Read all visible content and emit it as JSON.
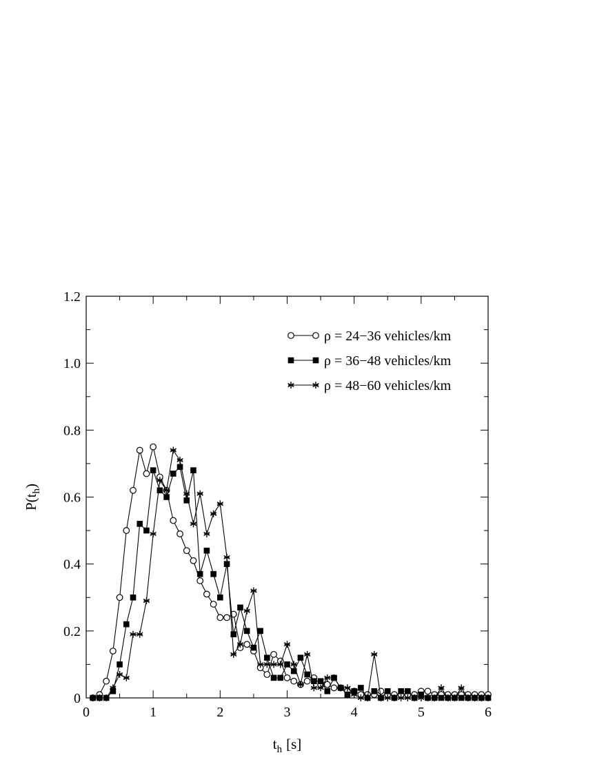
{
  "chart_data": {
    "type": "line",
    "xlabel_main": "t",
    "xlabel_sub": "h",
    "xlabel_unit": "[s]",
    "ylabel_main": "P(t",
    "ylabel_sub": "h",
    "ylabel_close": ")",
    "xlim": [
      0,
      6
    ],
    "ylim": [
      0,
      1.2
    ],
    "xticks": [
      0,
      1,
      2,
      3,
      4,
      5,
      6
    ],
    "xtick_labels": [
      "0",
      "1",
      "2",
      "3",
      "4",
      "5",
      "6"
    ],
    "yticks": [
      0,
      0.2,
      0.4,
      0.6,
      0.8,
      1.0,
      1.2
    ],
    "ytick_labels": [
      "0",
      "0.2",
      "0.4",
      "0.6",
      "0.8",
      "1.0",
      "1.2"
    ],
    "grid": false,
    "legend_position": "top-right",
    "series": [
      {
        "name": "ρ = 24−36 vehicles/km",
        "marker": "open-circle",
        "x": [
          0.1,
          0.2,
          0.3,
          0.4,
          0.5,
          0.6,
          0.7,
          0.8,
          0.9,
          1.0,
          1.1,
          1.2,
          1.3,
          1.4,
          1.5,
          1.6,
          1.7,
          1.8,
          1.9,
          2.0,
          2.1,
          2.2,
          2.3,
          2.4,
          2.5,
          2.6,
          2.7,
          2.8,
          2.9,
          3.0,
          3.1,
          3.2,
          3.3,
          3.4,
          3.5,
          3.6,
          3.7,
          3.8,
          3.9,
          4.0,
          4.1,
          4.2,
          4.3,
          4.4,
          4.5,
          4.6,
          4.7,
          4.8,
          4.9,
          5.0,
          5.1,
          5.2,
          5.3,
          5.4,
          5.5,
          5.6,
          5.7,
          5.8,
          5.9,
          6.0
        ],
        "y": [
          0,
          0.01,
          0.05,
          0.14,
          0.3,
          0.5,
          0.62,
          0.74,
          0.67,
          0.75,
          0.66,
          0.62,
          0.53,
          0.49,
          0.44,
          0.41,
          0.35,
          0.31,
          0.28,
          0.24,
          0.24,
          0.25,
          0.15,
          0.16,
          0.14,
          0.09,
          0.07,
          0.13,
          0.11,
          0.06,
          0.05,
          0.04,
          0.05,
          0.06,
          0.04,
          0.04,
          0.03,
          0.03,
          0.02,
          0.02,
          0.01,
          0.01,
          0.01,
          0.02,
          0.01,
          0.01,
          0.01,
          0.01,
          0.01,
          0.02,
          0.02,
          0.01,
          0.01,
          0.01,
          0.01,
          0.01,
          0.01,
          0.01,
          0.01,
          0.01
        ]
      },
      {
        "name": "ρ = 36−48 vehicles/km",
        "marker": "filled-square",
        "x": [
          0.1,
          0.2,
          0.3,
          0.4,
          0.5,
          0.6,
          0.7,
          0.8,
          0.9,
          1.0,
          1.1,
          1.2,
          1.3,
          1.4,
          1.5,
          1.6,
          1.7,
          1.8,
          1.9,
          2.0,
          2.1,
          2.2,
          2.3,
          2.4,
          2.5,
          2.6,
          2.7,
          2.8,
          2.9,
          3.0,
          3.1,
          3.2,
          3.3,
          3.4,
          3.5,
          3.6,
          3.7,
          3.8,
          3.9,
          4.0,
          4.1,
          4.2,
          4.3,
          4.4,
          4.5,
          4.6,
          4.7,
          4.8,
          4.9,
          5.0,
          5.1,
          5.2,
          5.3,
          5.4,
          5.5,
          5.6,
          5.7,
          5.8,
          5.9,
          6.0
        ],
        "y": [
          0,
          0,
          0,
          0.02,
          0.1,
          0.22,
          0.3,
          0.52,
          0.5,
          0.68,
          0.62,
          0.6,
          0.67,
          0.69,
          0.59,
          0.68,
          0.37,
          0.44,
          0.37,
          0.3,
          0.4,
          0.19,
          0.27,
          0.2,
          0.15,
          0.2,
          0.12,
          0.06,
          0.06,
          0.1,
          0.08,
          0.12,
          0.07,
          0.05,
          0.05,
          0.02,
          0.06,
          0.03,
          0.01,
          0.02,
          0.03,
          0,
          0.02,
          0,
          0.02,
          0,
          0.02,
          0.02,
          0,
          0.01,
          0,
          0,
          0,
          0,
          0,
          0,
          0,
          0,
          0,
          0
        ]
      },
      {
        "name": "ρ = 48−60 vehicles/km",
        "marker": "star",
        "x": [
          0.1,
          0.2,
          0.3,
          0.4,
          0.5,
          0.6,
          0.7,
          0.8,
          0.9,
          1.0,
          1.1,
          1.2,
          1.3,
          1.4,
          1.5,
          1.6,
          1.7,
          1.8,
          1.9,
          2.0,
          2.1,
          2.2,
          2.3,
          2.4,
          2.5,
          2.6,
          2.7,
          2.8,
          2.9,
          3.0,
          3.1,
          3.2,
          3.3,
          3.4,
          3.5,
          3.6,
          3.7,
          3.8,
          3.9,
          4.0,
          4.1,
          4.2,
          4.3,
          4.4,
          4.5,
          4.6,
          4.7,
          4.8,
          4.9,
          5.0,
          5.1,
          5.2,
          5.3,
          5.4,
          5.5,
          5.6,
          5.7,
          5.8,
          5.9,
          6.0
        ],
        "y": [
          0,
          0,
          0,
          0.03,
          0.07,
          0.06,
          0.19,
          0.19,
          0.29,
          0.49,
          0.65,
          0.62,
          0.74,
          0.71,
          0.61,
          0.52,
          0.61,
          0.49,
          0.55,
          0.58,
          0.42,
          0.13,
          0.16,
          0.26,
          0.32,
          0.1,
          0.1,
          0.1,
          0.1,
          0.16,
          0.1,
          0.04,
          0.13,
          0.03,
          0.03,
          0.06,
          0.06,
          0.03,
          0.03,
          0.01,
          0,
          0,
          0.13,
          0,
          0,
          0,
          0,
          0,
          0,
          0,
          0,
          0,
          0.03,
          0,
          0,
          0.03,
          0,
          0,
          0,
          0
        ]
      }
    ]
  }
}
